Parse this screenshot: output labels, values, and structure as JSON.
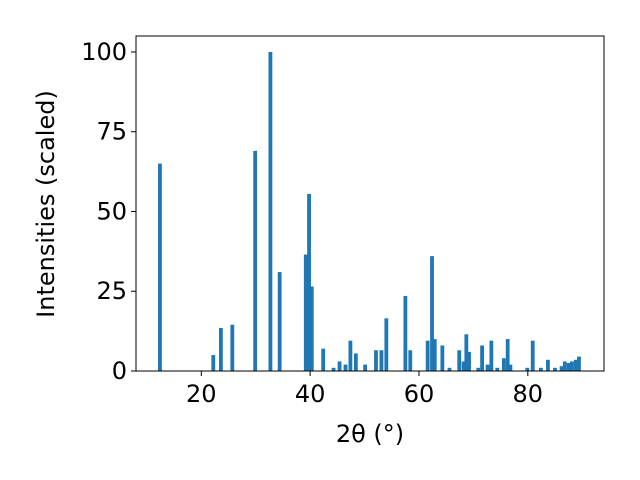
{
  "chart_data": {
    "type": "bar",
    "title": "",
    "xlabel": "2θ (°)",
    "ylabel": "Intensities (scaled)",
    "xlim": [
      8,
      94
    ],
    "ylim": [
      0,
      105
    ],
    "xticks": [
      20,
      40,
      60,
      80
    ],
    "yticks": [
      0,
      25,
      50,
      75,
      100
    ],
    "grid": false,
    "bar_color": "#1f77b4",
    "bar_width": 0.7,
    "x": [
      12.4,
      22.2,
      23.6,
      25.7,
      29.9,
      32.7,
      34.4,
      39.2,
      39.8,
      40.3,
      42.4,
      44.3,
      45.4,
      46.5,
      47.4,
      48.4,
      50.1,
      52.1,
      53.1,
      54.0,
      57.5,
      58.4,
      61.6,
      62.4,
      62.9,
      64.3,
      65.6,
      67.4,
      68.2,
      68.7,
      69.2,
      70.9,
      71.6,
      72.6,
      73.3,
      74.4,
      75.6,
      76.3,
      76.8,
      79.9,
      80.9,
      82.4,
      83.7,
      85.0,
      86.2,
      86.8,
      87.5,
      88.1,
      88.8,
      89.4
    ],
    "values": [
      65,
      5,
      13.5,
      14.5,
      69,
      100,
      31,
      36.5,
      55.5,
      26.5,
      7,
      1,
      3,
      2,
      9.5,
      5.5,
      2,
      6.5,
      6.5,
      16.5,
      23.5,
      6.5,
      9.5,
      36,
      10,
      8,
      1,
      6.5,
      3,
      11.5,
      6,
      1,
      8,
      2,
      9.5,
      1,
      4,
      10,
      2,
      1,
      9.5,
      1,
      3.5,
      1,
      1.5,
      3,
      2.5,
      3,
      3.5,
      4.5
    ]
  }
}
